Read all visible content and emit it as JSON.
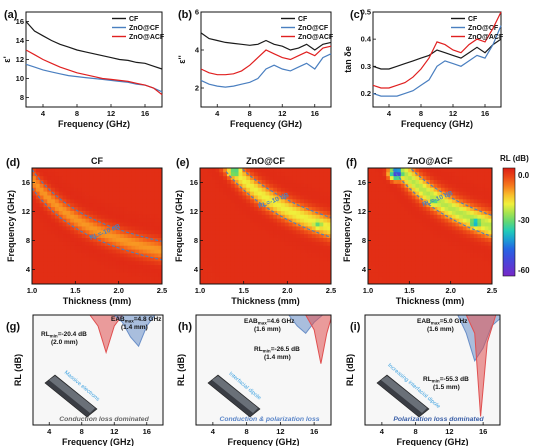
{
  "colors": {
    "cf": "#1a1a1a",
    "zno_cf": "#4a7fc0",
    "zno_acf": "#e02020",
    "contour": "#4a7fc0"
  },
  "chart_data": [
    {
      "panel": "a",
      "type": "line",
      "xlabel": "Frequency (GHz)",
      "ylabel": "ε'",
      "xlim": [
        2,
        18
      ],
      "ylim": [
        7,
        17
      ],
      "xticks": [
        4,
        8,
        12,
        16
      ],
      "yticks": [
        8,
        10,
        12,
        14,
        16
      ],
      "legend": "top-right",
      "series": [
        {
          "name": "CF",
          "x": [
            2,
            3,
            4,
            5,
            6,
            7,
            8,
            9,
            10,
            11,
            12,
            13,
            14,
            15,
            16,
            17,
            18
          ],
          "y": [
            16.0,
            15.0,
            14.5,
            14.0,
            13.6,
            13.3,
            13.0,
            12.8,
            12.6,
            12.4,
            12.2,
            12.0,
            11.9,
            11.7,
            11.6,
            11.3,
            11.0
          ]
        },
        {
          "name": "ZnO@CF",
          "x": [
            2,
            3,
            4,
            5,
            6,
            7,
            8,
            9,
            10,
            11,
            12,
            13,
            14,
            15,
            16,
            17,
            18
          ],
          "y": [
            11.5,
            11.2,
            10.9,
            10.7,
            10.5,
            10.3,
            10.2,
            10.1,
            10.0,
            9.9,
            9.8,
            9.7,
            9.6,
            9.4,
            9.3,
            9.0,
            8.6
          ]
        },
        {
          "name": "ZnO@ACF",
          "x": [
            2,
            3,
            4,
            5,
            6,
            7,
            8,
            9,
            10,
            11,
            12,
            13,
            14,
            15,
            16,
            17,
            18
          ],
          "y": [
            13.0,
            12.5,
            12.0,
            11.6,
            11.2,
            10.9,
            10.6,
            10.4,
            10.2,
            10.0,
            9.9,
            9.8,
            9.7,
            9.5,
            9.3,
            9.0,
            8.3
          ]
        }
      ]
    },
    {
      "panel": "b",
      "type": "line",
      "xlabel": "Frequency (GHz)",
      "ylabel": "ε''",
      "xlim": [
        2,
        18
      ],
      "ylim": [
        1,
        6
      ],
      "xticks": [
        4,
        8,
        12,
        16
      ],
      "yticks": [
        2,
        4,
        6
      ],
      "legend": "top-right",
      "series": [
        {
          "name": "CF",
          "x": [
            2,
            3,
            4,
            5,
            6,
            7,
            8,
            9,
            10,
            11,
            12,
            13,
            14,
            15,
            16,
            17,
            18
          ],
          "y": [
            4.9,
            4.6,
            4.5,
            4.4,
            4.35,
            4.3,
            4.25,
            4.3,
            4.5,
            4.3,
            4.2,
            4.0,
            4.1,
            4.3,
            4.0,
            4.3,
            4.4
          ]
        },
        {
          "name": "ZnO@CF",
          "x": [
            2,
            3,
            4,
            5,
            6,
            7,
            8,
            9,
            10,
            11,
            12,
            13,
            14,
            15,
            16,
            17,
            18
          ],
          "y": [
            2.4,
            2.2,
            2.1,
            2.05,
            2.1,
            2.2,
            2.3,
            2.5,
            3.0,
            3.2,
            3.0,
            2.9,
            3.1,
            3.3,
            3.0,
            3.6,
            3.8
          ]
        },
        {
          "name": "ZnO@ACF",
          "x": [
            2,
            3,
            4,
            5,
            6,
            7,
            8,
            9,
            10,
            11,
            12,
            13,
            14,
            15,
            16,
            17,
            18
          ],
          "y": [
            3.0,
            2.8,
            2.7,
            2.7,
            2.75,
            2.9,
            3.2,
            3.6,
            4.0,
            3.8,
            3.6,
            3.5,
            3.7,
            3.9,
            3.7,
            4.1,
            4.2
          ]
        }
      ]
    },
    {
      "panel": "c",
      "type": "line",
      "xlabel": "Frequency (GHz)",
      "ylabel": "tan δe",
      "xlim": [
        2,
        18
      ],
      "ylim": [
        0.15,
        0.5
      ],
      "xticks": [
        4,
        8,
        12,
        16
      ],
      "yticks": [
        0.2,
        0.3,
        0.4,
        0.5
      ],
      "legend": "top-right",
      "series": [
        {
          "name": "CF",
          "x": [
            2,
            3,
            4,
            5,
            6,
            7,
            8,
            9,
            10,
            11,
            12,
            13,
            14,
            15,
            16,
            17,
            18
          ],
          "y": [
            0.3,
            0.29,
            0.29,
            0.3,
            0.31,
            0.32,
            0.33,
            0.34,
            0.36,
            0.35,
            0.34,
            0.33,
            0.35,
            0.37,
            0.35,
            0.38,
            0.4
          ]
        },
        {
          "name": "ZnO@CF",
          "x": [
            2,
            3,
            4,
            5,
            6,
            7,
            8,
            9,
            10,
            11,
            12,
            13,
            14,
            15,
            16,
            17,
            18
          ],
          "y": [
            0.2,
            0.19,
            0.19,
            0.19,
            0.2,
            0.21,
            0.23,
            0.25,
            0.3,
            0.32,
            0.31,
            0.3,
            0.32,
            0.34,
            0.33,
            0.38,
            0.45
          ]
        },
        {
          "name": "ZnO@ACF",
          "x": [
            2,
            3,
            4,
            5,
            6,
            7,
            8,
            9,
            10,
            11,
            12,
            13,
            14,
            15,
            16,
            17,
            18
          ],
          "y": [
            0.23,
            0.22,
            0.22,
            0.23,
            0.24,
            0.26,
            0.29,
            0.33,
            0.39,
            0.38,
            0.36,
            0.35,
            0.38,
            0.4,
            0.39,
            0.44,
            0.5
          ]
        }
      ]
    },
    {
      "panel": "d",
      "type": "heatmap",
      "title": "CF",
      "xlabel": "Thickness (mm)",
      "ylabel": "Frequency (GHz)",
      "xlim": [
        1.0,
        2.5
      ],
      "ylim": [
        2,
        18
      ],
      "xticks": [
        1.0,
        1.5,
        2.0,
        2.5
      ],
      "yticks": [
        4,
        8,
        12,
        16
      ],
      "band_k": 16.5,
      "band_depth": -12,
      "band_width": 1.5,
      "hotspots": [],
      "contour_label": "RL=-10 dB"
    },
    {
      "panel": "e",
      "type": "heatmap",
      "title": "ZnO@CF",
      "xlabel": "Thickness (mm)",
      "ylabel": "Frequency (GHz)",
      "xlim": [
        1.0,
        2.5
      ],
      "ylim": [
        2,
        18
      ],
      "xticks": [
        1.0,
        1.5,
        2.0,
        2.5
      ],
      "yticks": [
        4,
        8,
        12,
        16
      ],
      "band_k": 24.5,
      "band_depth": -20,
      "band_width": 1.6,
      "hotspots": [
        {
          "t": 1.4,
          "f": 17.5,
          "v": -34
        },
        {
          "t": 2.35,
          "f": 10.3,
          "v": -30
        }
      ],
      "contour_label": "RL=-10 dB"
    },
    {
      "panel": "f",
      "type": "heatmap",
      "title": "ZnO@ACF",
      "xlabel": "Thickness (mm)",
      "ylabel": "Frequency (GHz)",
      "xlim": [
        1.0,
        2.5
      ],
      "ylim": [
        2,
        18
      ],
      "xticks": [
        1.0,
        1.5,
        2.0,
        2.5
      ],
      "yticks": [
        4,
        8,
        12,
        16
      ],
      "band_k": 25,
      "band_depth": -24,
      "band_width": 1.7,
      "hotspots": [
        {
          "t": 1.35,
          "f": 17.3,
          "v": -55
        },
        {
          "t": 2.3,
          "f": 10.5,
          "v": -40
        },
        {
          "t": 1.8,
          "f": 13.5,
          "v": -32
        }
      ],
      "contour_label": "RL=-10 dB"
    },
    {
      "panel": "g",
      "type": "area",
      "xlabel": "Frequency (GHz)",
      "ylabel": "RL (dB)",
      "xlim": [
        2,
        18
      ],
      "ylim": [
        -60,
        0
      ],
      "xticks": [
        4,
        8,
        12,
        16
      ],
      "series": [
        {
          "name": "2.0 mm",
          "x": [
            9,
            10,
            11,
            12,
            13
          ],
          "y": [
            0,
            -6,
            -20.4,
            -6,
            0
          ],
          "color": "#e05050"
        },
        {
          "name": "1.4 mm",
          "x": [
            12,
            13,
            14,
            15,
            16,
            17
          ],
          "y": [
            0,
            -4,
            -12,
            -17,
            -6,
            0
          ],
          "color": "#6a8fc8"
        }
      ],
      "annotations": [
        {
          "text": "EAB",
          "sub": "max",
          "text2": "=4.8 GHz",
          "line2": "(1.4 mm)"
        },
        {
          "text": "RL",
          "sub": "min",
          "text2": "=-20.4 dB",
          "line2": "(2.0 mm)"
        }
      ],
      "inset_label": "Massive electrons",
      "caption": "Conduction loss dominated"
    },
    {
      "panel": "h",
      "type": "area",
      "xlabel": "Frequency (GHz)",
      "ylabel": "RL (dB)",
      "xlim": [
        2,
        18
      ],
      "ylim": [
        -60,
        0
      ],
      "xticks": [
        4,
        8,
        12,
        16
      ],
      "series": [
        {
          "name": "1.6 mm",
          "x": [
            13,
            14,
            15,
            16,
            17
          ],
          "y": [
            0,
            -6,
            -10,
            -4,
            0
          ],
          "color": "#6a8fc8"
        },
        {
          "name": "1.4 mm",
          "x": [
            15,
            16,
            16.8,
            17.5,
            18
          ],
          "y": [
            0,
            -8,
            -26.5,
            -10,
            -2
          ],
          "color": "#e05050"
        }
      ],
      "annotations": [
        {
          "text": "EAB",
          "sub": "max",
          "text2": "=4.6 GHz",
          "line2": "(1.6 mm)"
        },
        {
          "text": "RL",
          "sub": "min",
          "text2": "=-26.5 dB",
          "line2": "(1.4 mm)"
        }
      ],
      "inset_label": "Interfacial dipole",
      "caption": "Conduction & polarization loss"
    },
    {
      "panel": "i",
      "type": "area",
      "xlabel": "Frequency (GHz)",
      "ylabel": "RL (dB)",
      "xlim": [
        2,
        18
      ],
      "ylim": [
        -60,
        0
      ],
      "xticks": [
        4,
        8,
        12,
        16
      ],
      "series": [
        {
          "name": "1.6 mm",
          "x": [
            13,
            14,
            15,
            16,
            17,
            18
          ],
          "y": [
            0,
            -10,
            -25,
            -18,
            -6,
            -2
          ],
          "color": "#6a8fc8"
        },
        {
          "name": "1.5 mm",
          "x": [
            14,
            15,
            15.7,
            16.5,
            17.5
          ],
          "y": [
            0,
            -10,
            -55.3,
            -15,
            0
          ],
          "color": "#e05050"
        }
      ],
      "annotations": [
        {
          "text": "EAB",
          "sub": "max",
          "text2": "=5.0 GHz",
          "line2": "(1.6 mm)"
        },
        {
          "text": "RL",
          "sub": "min",
          "text2": "=-55.3 dB",
          "line2": "(1.5 mm)"
        }
      ],
      "inset_label": "Increasing interfacial dipole",
      "caption": "Polarization loss dominated"
    }
  ],
  "colorbar": {
    "title": "RL (dB)",
    "ticks": [
      "0.0",
      "-30",
      "-60"
    ],
    "range": [
      -60,
      0
    ]
  }
}
